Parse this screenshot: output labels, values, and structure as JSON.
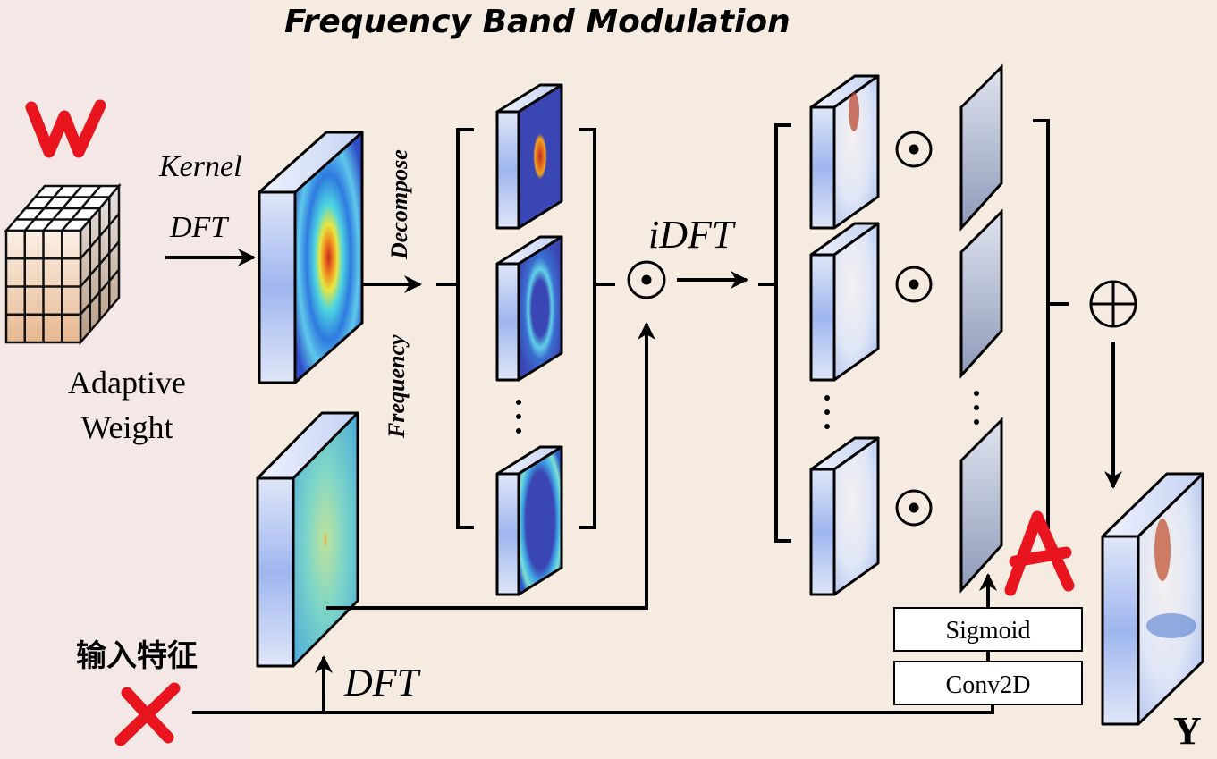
{
  "title": "Frequency Band Modulation",
  "labels": {
    "kernel": "Kernel",
    "dft_top": "DFT",
    "decompose": "Decompose",
    "frequency": "Frequency",
    "idft": "iDFT",
    "adaptive": "Adaptive",
    "weight": "Weight",
    "input_feature": "输入特征",
    "dft_bottom": "DFT",
    "sigmoid": "Sigmoid",
    "conv2d": "Conv2D",
    "output": "Y"
  },
  "handwritten": {
    "w": "W",
    "x": "X",
    "a": "A"
  },
  "colors": {
    "left_panel": "#f3e8e6",
    "background": "#f6ebe0",
    "annotation_red": "#e8141e"
  }
}
